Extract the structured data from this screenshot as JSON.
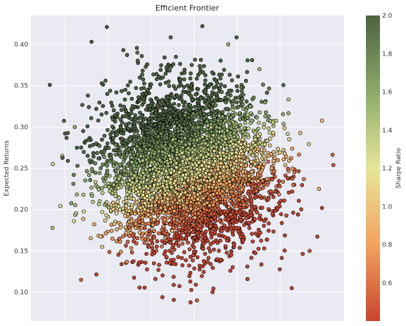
{
  "chart_data": {
    "type": "scatter",
    "title": "Efficient Frontier",
    "xlabel": "",
    "ylabel": "Expected Returns",
    "ylim": [
      0.065,
      0.435
    ],
    "xlim": [
      0.0,
      1.0
    ],
    "y_ticks": [
      "0.10",
      "0.15",
      "0.20",
      "0.25",
      "0.30",
      "0.35",
      "0.40"
    ],
    "y_tick_values": [
      0.1,
      0.15,
      0.2,
      0.25,
      0.3,
      0.35,
      0.4
    ],
    "x_ticks": [],
    "grid": true,
    "colorbar": {
      "label": "Sharpe Ratio",
      "range": [
        0.4,
        2.0
      ],
      "ticks": [
        "0.6",
        "0.8",
        "1.0",
        "1.2",
        "1.4",
        "1.6",
        "1.8",
        "2.0"
      ],
      "tick_values": [
        0.6,
        0.8,
        1.0,
        1.2,
        1.4,
        1.6,
        1.8,
        2.0
      ],
      "colormap": [
        "#c8452f",
        "#f3a25f",
        "#e6e699",
        "#8caa6a",
        "#4d6241"
      ]
    },
    "series": [
      {
        "marker": "circle",
        "edgecolor": "#000000",
        "point_count": 5000,
        "points_sample": [
          {
            "x": 0.07,
            "y": 0.255,
            "sharpe": 1.3
          },
          {
            "x": 0.1,
            "y": 0.265,
            "sharpe": 1.3
          },
          {
            "x": 0.14,
            "y": 0.3,
            "sharpe": 1.55
          },
          {
            "x": 0.16,
            "y": 0.115,
            "sharpe": 0.55
          },
          {
            "x": 0.34,
            "y": 0.39,
            "sharpe": 1.9
          },
          {
            "x": 0.63,
            "y": 0.4,
            "sharpe": 1.55
          },
          {
            "x": 0.73,
            "y": 0.37,
            "sharpe": 1.5
          },
          {
            "x": 0.89,
            "y": 0.15,
            "sharpe": 0.5
          },
          {
            "x": 0.92,
            "y": 0.225,
            "sharpe": 0.9
          },
          {
            "x": 0.53,
            "y": 0.09,
            "sharpe": 0.5
          },
          {
            "x": 0.4,
            "y": 0.2,
            "sharpe": 0.8
          },
          {
            "x": 0.6,
            "y": 0.3,
            "sharpe": 1.35
          }
        ]
      }
    ]
  }
}
